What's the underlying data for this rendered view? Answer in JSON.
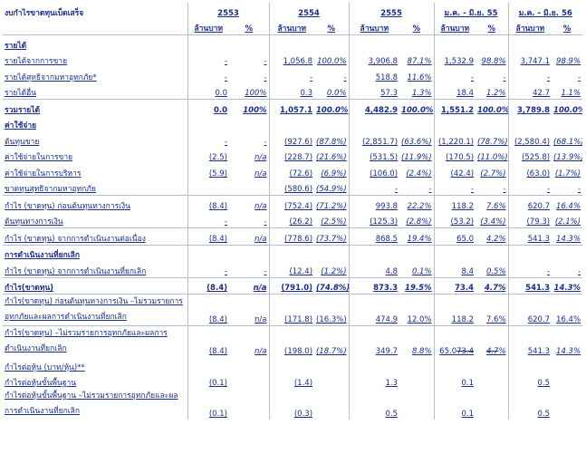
{
  "table": {
    "title": "งบกำไรขาดทุนเบ็ดเสร็จ",
    "periods": [
      "2553",
      "2554",
      "2555",
      "ม.ค. - มิ.ย. 55",
      "ม.ค. - มิ.ย. 56"
    ],
    "unit_amount": "ล้านบาท",
    "unit_pct": "%",
    "rows": [
      {
        "label": "รายได้",
        "cells": [
          "",
          "",
          "",
          "",
          "",
          "",
          "",
          "",
          "",
          ""
        ]
      },
      {
        "label": "รายได้จากการขาย",
        "cells": [
          "-",
          "-",
          "1,056.8",
          "100.0%",
          "3,906.8",
          "87.1%",
          "1,532.9",
          "98.8%",
          "3,747.1",
          "98.9%"
        ]
      },
      {
        "label": "รายได้สุทธิจากมหาอุทกภัย*",
        "cells": [
          "-",
          "-",
          "-",
          "-",
          "518.8",
          "11.6%",
          "-",
          "-",
          "-",
          "-"
        ]
      },
      {
        "label": "รายได้อื่น",
        "cells": [
          "0.0",
          "100%",
          "0.3",
          "0.0%",
          "57.3",
          "1.3%",
          "18.4",
          "1.2%",
          "42.7",
          "1.1%"
        ]
      },
      {
        "label": "รวมรายได้",
        "cells": [
          "0.0",
          "100%",
          "1,057.1",
          "100.0%",
          "4,482.9",
          "100.0%",
          "1,551.2",
          "100.0%",
          "3,789.8",
          "100.0%"
        ]
      },
      {
        "label": "ค่าใช้จ่าย",
        "cells": [
          "",
          "",
          "",
          "",
          "",
          "",
          "",
          "",
          "",
          ""
        ]
      },
      {
        "label": "ต้นทุนขาย",
        "cells": [
          "-",
          "-",
          "(927.6)",
          "(87.8%)",
          "(2,851.7)",
          "(63.6%)",
          "(1,220.1)",
          "(78.7%)",
          "(2,580.4)",
          "(68.1%)"
        ]
      },
      {
        "label": "ค่าใช้จ่ายในการขาย",
        "cells": [
          "(2.5)",
          "n/a",
          "(228.7)",
          "(21.6%)",
          "(531.5)",
          "(11.9%)",
          "(170.5)",
          "(11.0%)",
          "(525.8)",
          "(13.9%)"
        ]
      },
      {
        "label": "ค่าใช้จ่ายในการบริหาร",
        "cells": [
          "(5.9)",
          "n/a",
          "(72.6)",
          "(6.9%)",
          "(106.0)",
          "(2.4%)",
          "(42.4)",
          "(2.7%)",
          "(63.0)",
          "(1.7%)"
        ]
      },
      {
        "label": "ขาดทุนสุทธิจากมหาอุทกภัย",
        "cells": [
          "",
          "",
          "(580.6)",
          "(54.9%)",
          "-",
          "-",
          "-",
          "-",
          "-",
          "-"
        ]
      },
      {
        "label": "กำไร (ขาดทุน) ก่อนต้นทุนทางการเงิน",
        "cells": [
          "(8.4)",
          "n/a",
          "(752.4)",
          "(71.2%)",
          "993.8",
          "22.2%",
          "118.2",
          "7.6%",
          "620.7",
          "16.4%"
        ]
      },
      {
        "label": "ต้นทุนทางการเงิน",
        "cells": [
          "-",
          "-",
          "(26.2)",
          "(2.5%)",
          "(125.3)",
          "(2.8%)",
          "(53.2)",
          "(3.4%)",
          "(79.3)",
          "(2.1%)"
        ]
      },
      {
        "label": "กำไร (ขาดทุน) จากการดำเนินงานต่อเนื่อง",
        "cells": [
          "(8.4)",
          "n/a",
          "(778.6)",
          "(73.7%)",
          "868.5",
          "19.4%",
          "65.0",
          "4.2%",
          "541.3",
          "14.3%"
        ]
      },
      {
        "label": "การดำเนินงานที่ยกเลิก",
        "cells": [
          "",
          "",
          "",
          "",
          "",
          "",
          "",
          "",
          "",
          ""
        ]
      },
      {
        "label": "กำไร (ขาดทุน) จากการดำเนินงานที่ยกเลิก",
        "cells": [
          "-",
          "-",
          "(12.4)",
          "(1.2%)",
          "4.8",
          "0.1%",
          "8.4",
          "0.5%",
          "-",
          "-"
        ]
      },
      {
        "label": "กำไร(ขาดทุน)",
        "cells": [
          "(8.4)",
          "n/a",
          "(791.0)",
          "(74.8%)",
          "873.3",
          "19.5%",
          "73.4",
          "4.7%",
          "541.3",
          "14.3%"
        ]
      },
      {
        "label": "กำไร(ขาดทุน) ก่อนต้นทุนทางการเงิน –ไม่รวมรายการอุทกภัยและผลการดำเนินงานที่ยกเลิก",
        "cells": [
          "(8.4)",
          "n/a",
          "(171.8)",
          "(16.3%)",
          "474.9",
          "12.0%",
          "118.2",
          "7.6%",
          "620.7",
          "16.4%"
        ]
      },
      {
        "label": "กำไร(ขาดทุน) –ไม่รวมรายการอุทกภัยและผลการดำเนินงานที่ยกเลิก",
        "cells": [
          "(8.4)",
          "n/a",
          "(198.0)",
          "(18.7%)",
          "349.7",
          "8.8%",
          "65.0",
          "4.2%",
          "541.3",
          "14.3%"
        ],
        "struck": "73.4",
        "pct_struck": "4.7"
      },
      {
        "label": "กำไรต่อหุ้น (บาท/หุ้น)**",
        "cells": [
          "",
          "",
          "",
          "",
          "",
          "",
          "",
          "",
          "",
          ""
        ]
      },
      {
        "label": "กำไรต่อหุ้นขั้นพื้นฐาน",
        "cells": [
          "(0.1)",
          "",
          "(1.4)",
          "",
          "1.3",
          "",
          "0.1",
          "",
          "0.5",
          ""
        ]
      },
      {
        "label": "กำไรต่อหุ้นขั้นพื้นฐาน –ไม่รวมรายการอุทกภัยและผลการดำเนินงานที่ยกเลิก",
        "cells": [
          "(0.1)",
          "",
          "(0.3)",
          "",
          "0.5",
          "",
          "0.1",
          "",
          "0.5",
          ""
        ]
      }
    ]
  }
}
